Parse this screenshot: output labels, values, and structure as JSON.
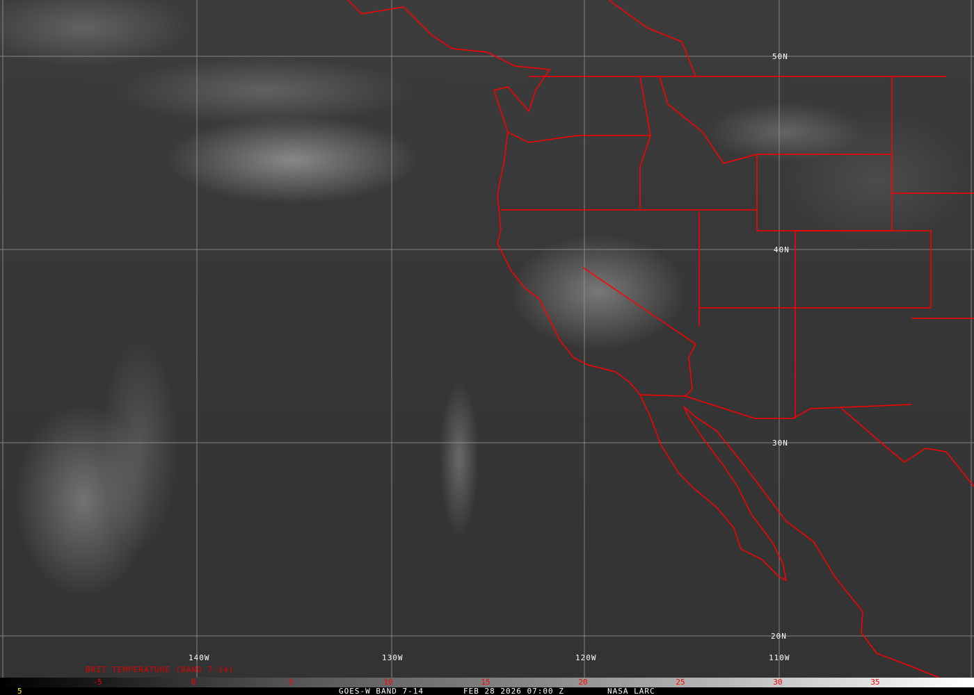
{
  "map": {
    "latitude_labels": [
      "50N",
      "40N",
      "30N",
      "20N"
    ],
    "longitude_labels": [
      "140W",
      "130W",
      "120W",
      "110W"
    ],
    "graticule_color": "#a0a0a0",
    "boundary_color": "#ff0000"
  },
  "colorbar": {
    "title": "BRIT TEMPERATURE (BAND 7-14)",
    "ticks": [
      "-5",
      "0",
      "5",
      "10",
      "15",
      "20",
      "25",
      "30",
      "35"
    ],
    "tick_color": "#ff0000"
  },
  "footer": {
    "frame_number": "5",
    "satellite": "GOES-W BAND 7-14",
    "datetime": "FEB 28 2026 07:00 Z",
    "credit": "NASA LARC"
  }
}
